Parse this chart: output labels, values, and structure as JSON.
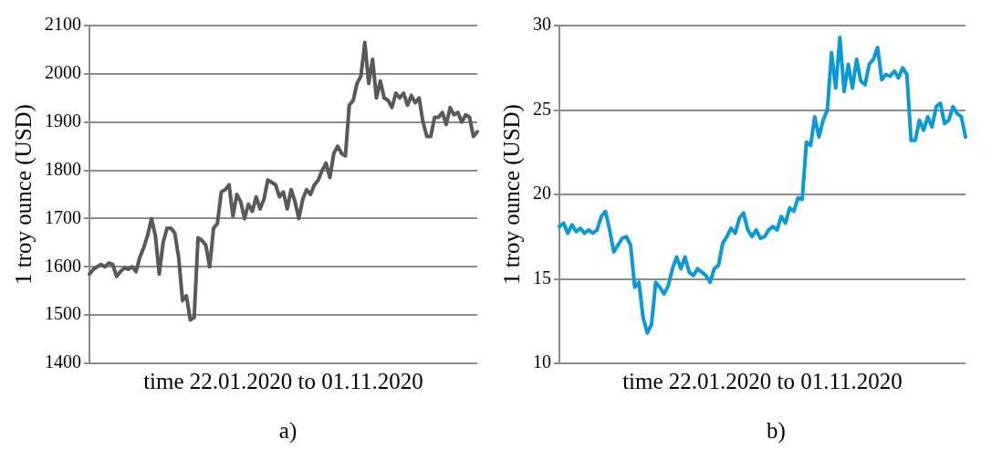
{
  "chart_data": [
    {
      "type": "line",
      "ylabel": "1 troy ounce (USD)",
      "xlabel": "time 22.01.2020 to 01.11.2020",
      "annotations": [
        "a)"
      ],
      "ylim": [
        1400,
        2100
      ],
      "yticks": [
        1400,
        1500,
        1600,
        1700,
        1800,
        1900,
        2000,
        2100
      ],
      "grid": "y",
      "tick_labels": "y",
      "marker": "none",
      "categories": [
        null,
        null,
        null,
        null,
        null,
        null,
        null,
        null,
        null,
        null,
        null,
        null,
        null,
        null,
        null,
        null,
        null,
        null,
        null,
        null,
        null,
        null,
        null,
        null,
        null,
        null,
        null,
        null,
        null,
        null,
        null,
        null,
        null,
        null,
        null,
        null,
        null,
        null,
        null,
        null,
        null,
        null,
        null,
        null,
        null,
        null,
        null,
        null,
        null,
        null,
        null,
        null,
        null,
        null,
        null,
        null,
        null,
        null,
        null,
        null,
        null,
        null,
        null,
        null,
        null,
        null,
        null,
        null,
        null,
        null,
        null,
        null,
        null,
        null,
        null,
        null,
        null,
        null,
        null,
        null,
        null,
        null,
        null,
        null,
        null,
        null,
        null,
        null,
        null,
        null,
        null,
        null,
        null,
        null,
        null,
        null,
        null,
        null,
        null,
        null,
        null
      ],
      "series": [
        {
          "color": "#595959",
          "values": [
            1585,
            1595,
            1600,
            1605,
            1600,
            1608,
            1605,
            1580,
            1590,
            1598,
            1595,
            1600,
            1590,
            1620,
            1640,
            1665,
            1700,
            1665,
            1585,
            1650,
            1680,
            1680,
            1670,
            1620,
            1530,
            1540,
            1490,
            1495,
            1660,
            1655,
            1645,
            1600,
            1680,
            1690,
            1755,
            1760,
            1770,
            1705,
            1750,
            1735,
            1700,
            1730,
            1715,
            1745,
            1720,
            1740,
            1780,
            1775,
            1770,
            1745,
            1755,
            1720,
            1760,
            1735,
            1700,
            1740,
            1760,
            1750,
            1770,
            1780,
            1800,
            1815,
            1785,
            1835,
            1850,
            1835,
            1830,
            1935,
            1945,
            1980,
            1995,
            2065,
            1980,
            2030,
            1950,
            1985,
            1950,
            1945,
            1930,
            1960,
            1950,
            1960,
            1935,
            1955,
            1940,
            1950,
            1900,
            1870,
            1870,
            1910,
            1910,
            1920,
            1895,
            1930,
            1915,
            1920,
            1900,
            1915,
            1910,
            1870,
            1880
          ]
        }
      ]
    },
    {
      "type": "line",
      "ylabel": "1 troy ounce (USD)",
      "xlabel": "time 22.01.2020 to 01.11.2020",
      "annotations": [
        "b)"
      ],
      "ylim": [
        10,
        30
      ],
      "yticks": [
        10,
        15,
        20,
        25,
        30
      ],
      "grid": "y",
      "tick_labels": "y",
      "marker": "none",
      "categories": [
        null,
        null,
        null,
        null,
        null,
        null,
        null,
        null,
        null,
        null,
        null,
        null,
        null,
        null,
        null,
        null,
        null,
        null,
        null,
        null,
        null,
        null,
        null,
        null,
        null,
        null,
        null,
        null,
        null,
        null,
        null,
        null,
        null,
        null,
        null,
        null,
        null,
        null,
        null,
        null,
        null,
        null,
        null,
        null,
        null,
        null,
        null,
        null,
        null,
        null,
        null,
        null,
        null,
        null,
        null,
        null,
        null,
        null,
        null,
        null,
        null,
        null,
        null,
        null,
        null,
        null,
        null,
        null,
        null,
        null,
        null,
        null,
        null,
        null,
        null,
        null,
        null,
        null,
        null,
        null,
        null,
        null,
        null,
        null,
        null,
        null,
        null,
        null,
        null,
        null,
        null,
        null,
        null,
        null,
        null,
        null,
        null,
        null
      ],
      "series": [
        {
          "color": "#0a9ad8",
          "values": [
            18.1,
            18.3,
            17.7,
            18.2,
            17.8,
            18.0,
            17.7,
            17.9,
            17.7,
            17.9,
            18.7,
            19.0,
            17.9,
            16.6,
            17.0,
            17.4,
            17.5,
            17.0,
            14.5,
            14.8,
            12.7,
            11.8,
            12.3,
            14.8,
            14.5,
            14.1,
            14.6,
            15.6,
            16.3,
            15.6,
            16.3,
            15.4,
            15.2,
            15.6,
            15.4,
            15.2,
            14.8,
            15.6,
            15.8,
            17.1,
            17.5,
            18.0,
            17.7,
            18.6,
            18.9,
            17.9,
            17.5,
            17.9,
            17.4,
            17.5,
            17.9,
            18.1,
            17.9,
            18.7,
            18.3,
            19.2,
            19.0,
            19.8,
            19.7,
            23.1,
            22.9,
            24.6,
            23.4,
            24.4,
            25.0,
            28.4,
            26.3,
            29.3,
            26.1,
            27.7,
            26.3,
            28.0,
            26.7,
            26.5,
            27.7,
            28.0,
            28.7,
            26.8,
            27.1,
            27.0,
            27.3,
            26.9,
            27.5,
            27.1,
            23.2,
            23.2,
            24.4,
            23.8,
            24.6,
            24.0,
            25.2,
            25.4,
            24.2,
            24.4,
            25.2,
            24.8,
            24.6,
            23.4
          ]
        }
      ]
    }
  ]
}
